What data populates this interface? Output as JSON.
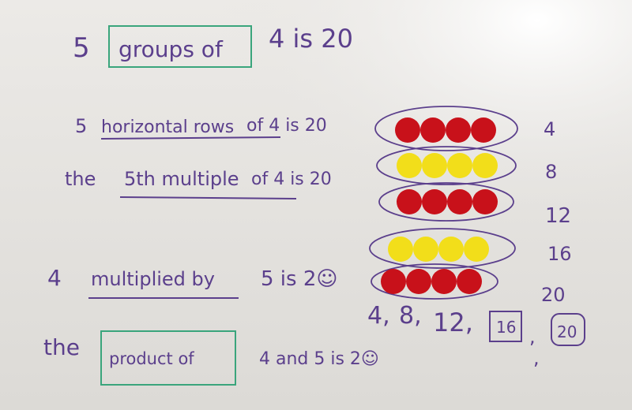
{
  "colors": {
    "ink": "#5b3f8c",
    "box": "#3aa57c",
    "red": "#c8111a",
    "yellow": "#f2de1a",
    "board": "#e6e4e1"
  },
  "lines": [
    {
      "pre": "5",
      "boxed": "groups of",
      "post": "4 is 20"
    },
    {
      "pre": "5",
      "underlined": "horizontal rows",
      "post": "of 4 is 20"
    },
    {
      "pre": "the",
      "underlined": "5th multiple",
      "post": "of 4 is 20"
    },
    {
      "pre": "4",
      "underlined": "multiplied by",
      "post": "5 is 2☺"
    },
    {
      "pre": "the",
      "boxed": "product of",
      "post": "4 and 5 is 2☺"
    }
  ],
  "counter_rows": [
    {
      "color": "red",
      "count": 4
    },
    {
      "color": "yellow",
      "count": 4
    },
    {
      "color": "red",
      "count": 4
    },
    {
      "color": "yellow",
      "count": 4
    },
    {
      "color": "red",
      "count": 4
    }
  ],
  "running_totals": [
    "4",
    "8",
    "12",
    "16",
    "20"
  ],
  "sequence": {
    "items": [
      "4,",
      "8,",
      "12,"
    ],
    "boxed": [
      "16",
      "20"
    ],
    "commas": [
      ",",
      ","
    ]
  }
}
